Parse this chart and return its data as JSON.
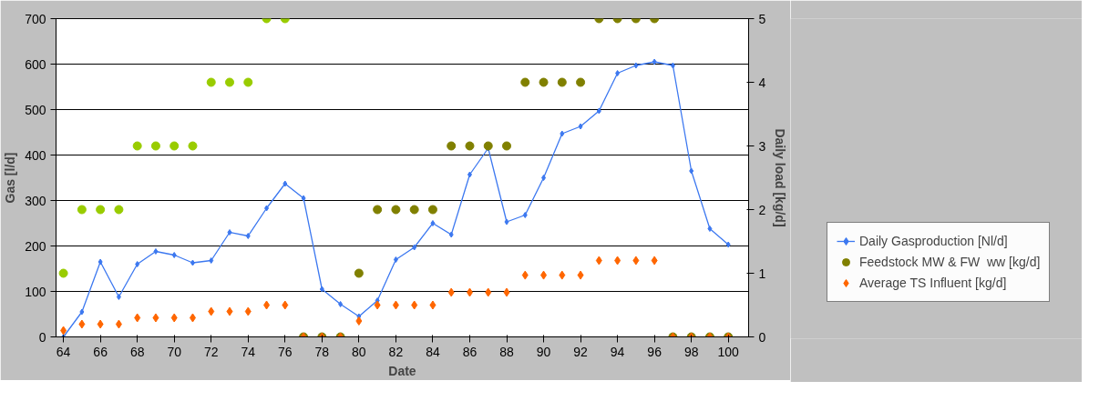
{
  "chart_data": {
    "type": "line",
    "xlabel": "Date",
    "ylabel": "Gas [l/d]",
    "y2label": "Daily load [kg/d]",
    "x": [
      64,
      65,
      66,
      67,
      68,
      69,
      70,
      71,
      72,
      73,
      74,
      75,
      76,
      77,
      78,
      79,
      80,
      81,
      82,
      83,
      84,
      85,
      86,
      87,
      88,
      89,
      90,
      91,
      92,
      93,
      94,
      95,
      96,
      97,
      98,
      99,
      100
    ],
    "xlim": [
      63.6,
      101.1
    ],
    "xticks": [
      64,
      66,
      68,
      70,
      72,
      74,
      76,
      78,
      80,
      82,
      84,
      86,
      88,
      90,
      92,
      94,
      96,
      98,
      100
    ],
    "ylim": [
      0,
      700
    ],
    "yticks": [
      0,
      100,
      200,
      300,
      400,
      500,
      600,
      700
    ],
    "y2lim": [
      0,
      5
    ],
    "y2ticks": [
      0,
      1,
      2,
      3,
      4,
      5
    ],
    "grid": "y",
    "legend": "right",
    "series": [
      {
        "name": "Daily Gasproduction [Nl/d]",
        "marker": "diamond",
        "color": "#3c78f0",
        "values": [
          0,
          55,
          165,
          88,
          160,
          188,
          180,
          163,
          168,
          230,
          222,
          283,
          337,
          305,
          105,
          72,
          45,
          80,
          170,
          197,
          250,
          225,
          357,
          415,
          253,
          268,
          350,
          447,
          463,
          497,
          580,
          597,
          605,
          597,
          365,
          238,
          203
        ]
      },
      {
        "name": "Feedstock MW & FW  ww [kg/d]",
        "type": "scatter",
        "marker": "circle",
        "axis": "y2",
        "color": "#808000",
        "colors": [
          "#99cc00",
          "#99cc00",
          "#99cc00",
          "#99cc00",
          "#99cc00",
          "#99cc00",
          "#99cc00",
          "#99cc00",
          "#99cc00",
          "#99cc00",
          "#99cc00",
          "#99cc00",
          "#99cc00",
          "#808000",
          "#808000",
          "#808000",
          "#808000",
          "#808000",
          "#808000",
          "#808000",
          "#808000",
          "#808000",
          "#808000",
          "#808000",
          "#808000",
          "#808000",
          "#808000",
          "#808000",
          "#808000",
          "#808000",
          "#808000",
          "#808000",
          "#808000",
          "#808000",
          "#808000",
          "#808000",
          "#808000"
        ],
        "values": [
          1,
          2,
          2,
          2,
          3,
          3,
          3,
          3,
          4,
          4,
          4,
          5,
          5,
          0,
          0,
          0,
          1,
          2,
          2,
          2,
          2,
          3,
          3,
          3,
          3,
          4,
          4,
          4,
          4,
          5,
          5,
          5,
          5,
          0,
          0,
          0,
          0
        ]
      },
      {
        "name": "Average TS Influent [kg/d]",
        "type": "scatter",
        "marker": "diamond",
        "axis": "y2",
        "color": "#ff6600",
        "values": [
          0.1,
          0.2,
          0.2,
          0.2,
          0.3,
          0.3,
          0.3,
          0.3,
          0.4,
          0.4,
          0.4,
          0.5,
          0.5,
          0,
          0,
          0,
          0.25,
          0.5,
          0.5,
          0.5,
          0.5,
          0.7,
          0.7,
          0.7,
          0.7,
          0.97,
          0.97,
          0.97,
          0.97,
          1.2,
          1.2,
          1.2,
          1.2,
          0,
          0,
          0,
          0
        ]
      }
    ]
  }
}
